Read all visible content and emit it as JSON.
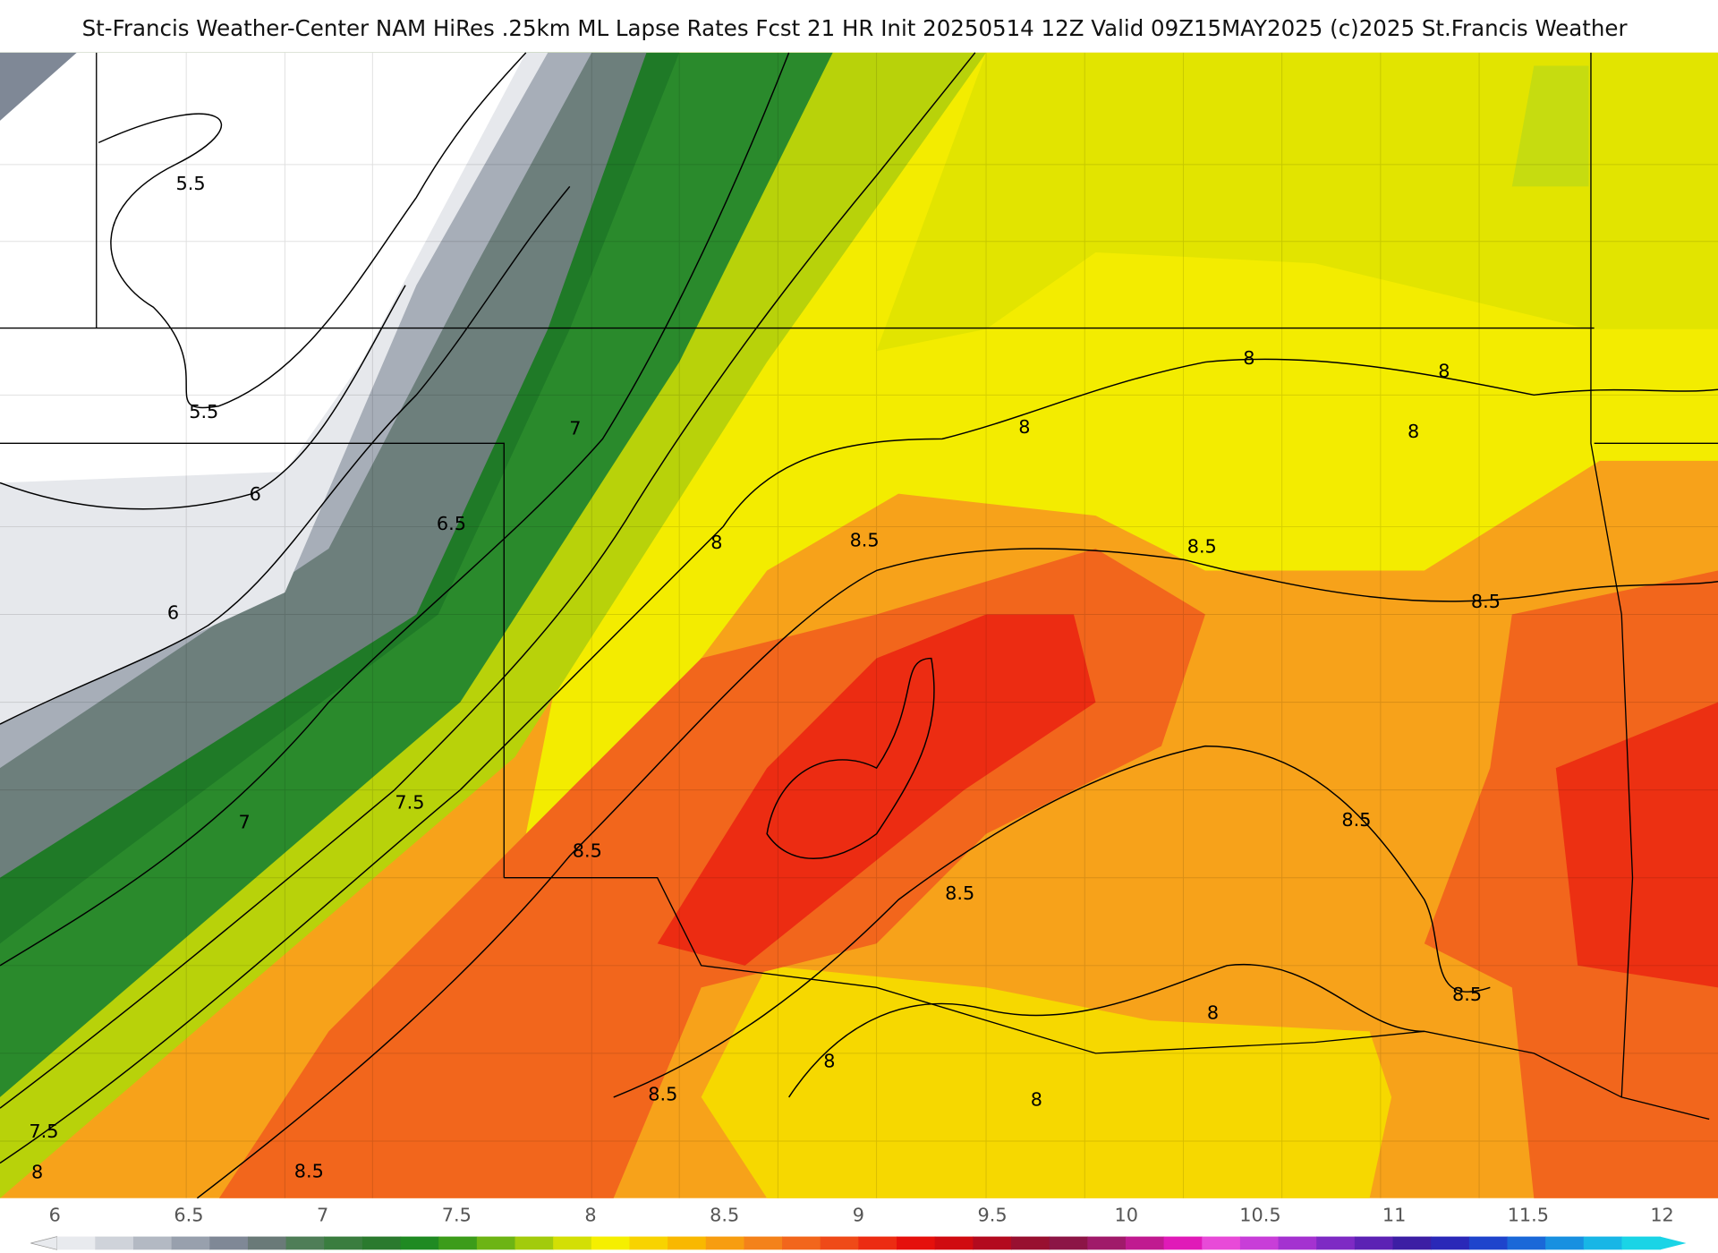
{
  "title": "St-Francis Weather-Center NAM HiRes .25km ML Lapse Rates  Fcst 21 HR Init 20250514 12Z  Valid 09Z15MAY2025    (c)2025 St.Francis Weather",
  "contour_labels": [
    "5.5",
    "5.5",
    "6",
    "6.5",
    "6",
    "7",
    "7",
    "7.5",
    "7.5",
    "8",
    "8",
    "8",
    "8",
    "8",
    "8",
    "8.5",
    "8.5",
    "8.5",
    "8.5",
    "8.5",
    "8.5",
    "8.5",
    "8.5",
    "8.5",
    "8",
    "8",
    "8"
  ],
  "colorbar": {
    "ticks": [
      "6",
      "6.5",
      "7",
      "7.5",
      "8",
      "8.5",
      "9",
      "9.5",
      "10",
      "10.5",
      "11",
      "11.5",
      "12"
    ],
    "colors": [
      "#e8eaee",
      "#cfd3da",
      "#b3b9c3",
      "#98a0ad",
      "#7f8896",
      "#6a7a78",
      "#4f7e57",
      "#3a7d3f",
      "#2a7a2e",
      "#1f8a22",
      "#3c9c1a",
      "#6db414",
      "#a2cb0c",
      "#d3df05",
      "#f5ef00",
      "#f8d300",
      "#f9b800",
      "#f79d10",
      "#f4821a",
      "#f2661c",
      "#ef4a18",
      "#ec2c12",
      "#e5100c",
      "#d00b10",
      "#b30a1e",
      "#981030",
      "#8c1546",
      "#a01a6a",
      "#c01a90",
      "#e01ab8",
      "#e84ad8",
      "#c83ed8",
      "#a432d0",
      "#7e2ac4",
      "#5c22b4",
      "#3c1ea4",
      "#2a28b8",
      "#1e44cc",
      "#1a68d8",
      "#1890e0",
      "#18b6e6",
      "#1ad4e6"
    ]
  }
}
